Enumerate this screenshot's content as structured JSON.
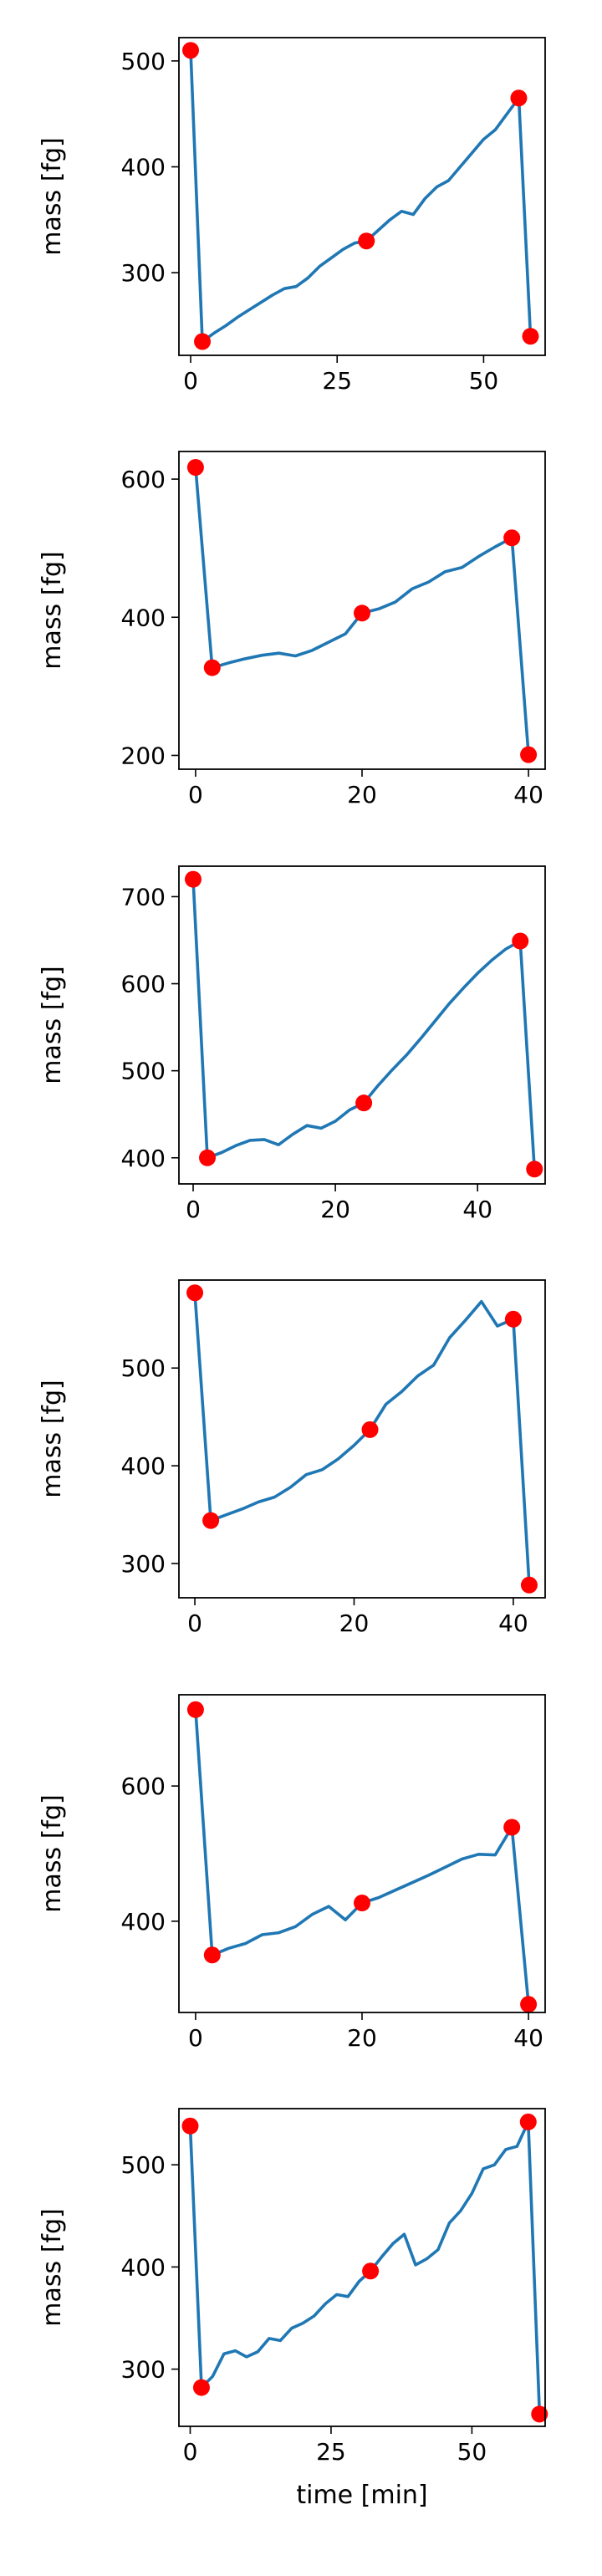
{
  "colors": {
    "line": "#1f77b4",
    "marker": "#ff0000",
    "axes": "#000000",
    "background": "#ffffff"
  },
  "chart_data": [
    {
      "type": "line",
      "xlim": [
        -2,
        60.5
      ],
      "ylim": [
        222,
        522
      ],
      "xticks": [
        0,
        25,
        50
      ],
      "yticks": [
        300,
        400,
        500
      ],
      "ylabel": "mass [fg]",
      "xlabel": "",
      "grid": false,
      "series": [
        {
          "x": [
            0,
            2,
            4,
            6,
            8,
            10,
            12,
            14,
            16,
            18,
            20,
            22,
            24,
            26,
            28,
            30,
            32,
            34,
            36,
            38,
            40,
            42,
            44,
            46,
            48,
            50,
            52,
            54,
            56,
            58
          ],
          "values": [
            510,
            235,
            243,
            250,
            258,
            265,
            272,
            279,
            285,
            287,
            295,
            306,
            314,
            322,
            328,
            330,
            340,
            350,
            358,
            355,
            370,
            381,
            387,
            400,
            413,
            426,
            435,
            450,
            465,
            240
          ]
        }
      ],
      "markers": {
        "x": [
          0,
          2,
          30,
          56,
          58
        ],
        "values": [
          510,
          235,
          330,
          465,
          240
        ]
      }
    },
    {
      "type": "line",
      "xlim": [
        -2,
        42
      ],
      "ylim": [
        180,
        640
      ],
      "xticks": [
        0,
        20,
        40
      ],
      "yticks": [
        200,
        400,
        600
      ],
      "ylabel": "mass [fg]",
      "xlabel": "",
      "grid": false,
      "series": [
        {
          "x": [
            0,
            2,
            4,
            6,
            8,
            10,
            12,
            14,
            16,
            18,
            20,
            22,
            24,
            26,
            28,
            30,
            32,
            34,
            36,
            38,
            40
          ],
          "values": [
            617,
            327,
            334,
            340,
            345,
            348,
            344,
            352,
            364,
            376,
            406,
            412,
            422,
            441,
            451,
            466,
            472,
            488,
            502,
            515,
            201
          ]
        }
      ],
      "markers": {
        "x": [
          0,
          2,
          20,
          38,
          40
        ],
        "values": [
          617,
          327,
          406,
          515,
          201
        ]
      }
    },
    {
      "type": "line",
      "xlim": [
        -2,
        49.5
      ],
      "ylim": [
        370,
        735
      ],
      "xticks": [
        0,
        20,
        40
      ],
      "yticks": [
        400,
        500,
        600,
        700
      ],
      "ylabel": "mass [fg]",
      "xlabel": "",
      "grid": false,
      "series": [
        {
          "x": [
            0,
            2,
            4,
            6,
            8,
            10,
            12,
            14,
            16,
            18,
            20,
            22,
            24,
            26,
            28,
            30,
            32,
            34,
            36,
            38,
            40,
            42,
            44,
            46,
            48
          ],
          "values": [
            720,
            400,
            406,
            414,
            420,
            421,
            415,
            427,
            437,
            434,
            442,
            455,
            463,
            483,
            501,
            518,
            537,
            557,
            577,
            595,
            612,
            627,
            640,
            649,
            387
          ]
        }
      ],
      "markers": {
        "x": [
          0,
          2,
          24,
          46,
          48
        ],
        "values": [
          720,
          400,
          463,
          649,
          387
        ]
      }
    },
    {
      "type": "line",
      "xlim": [
        -2,
        44
      ],
      "ylim": [
        265,
        590
      ],
      "xticks": [
        0,
        20,
        40
      ],
      "yticks": [
        300,
        400,
        500
      ],
      "ylabel": "mass [fg]",
      "xlabel": "",
      "grid": false,
      "series": [
        {
          "x": [
            0,
            2,
            4,
            6,
            8,
            10,
            12,
            14,
            16,
            18,
            20,
            22,
            24,
            26,
            28,
            30,
            32,
            34,
            36,
            38,
            40,
            42
          ],
          "values": [
            577,
            344,
            350,
            356,
            363,
            368,
            378,
            391,
            396,
            407,
            421,
            437,
            463,
            476,
            492,
            503,
            531,
            549,
            568,
            543,
            550,
            278
          ]
        }
      ],
      "markers": {
        "x": [
          0,
          2,
          22,
          40,
          42
        ],
        "values": [
          577,
          344,
          437,
          550,
          278
        ]
      }
    },
    {
      "type": "line",
      "xlim": [
        -2,
        42
      ],
      "ylim": [
        265,
        735
      ],
      "xticks": [
        0,
        20,
        40
      ],
      "yticks": [
        400,
        600
      ],
      "ylabel": "mass [fg]",
      "xlabel": "",
      "grid": false,
      "series": [
        {
          "x": [
            0,
            2,
            4,
            6,
            8,
            10,
            12,
            14,
            16,
            18,
            20,
            22,
            24,
            26,
            28,
            30,
            32,
            34,
            36,
            38,
            40
          ],
          "values": [
            713,
            350,
            360,
            367,
            380,
            383,
            392,
            410,
            422,
            402,
            427,
            435,
            446,
            457,
            468,
            480,
            492,
            499,
            498,
            539,
            277
          ]
        }
      ],
      "markers": {
        "x": [
          0,
          2,
          20,
          38,
          40
        ],
        "values": [
          713,
          350,
          427,
          539,
          277
        ]
      }
    },
    {
      "type": "line",
      "xlim": [
        -2,
        63
      ],
      "ylim": [
        244,
        555
      ],
      "xticks": [
        0,
        25,
        50
      ],
      "yticks": [
        300,
        400,
        500
      ],
      "ylabel": "mass [fg]",
      "xlabel": "time [min]",
      "grid": false,
      "series": [
        {
          "x": [
            0,
            2,
            4,
            6,
            8,
            10,
            12,
            14,
            16,
            18,
            20,
            22,
            24,
            26,
            28,
            30,
            32,
            34,
            36,
            38,
            40,
            42,
            44,
            46,
            48,
            50,
            52,
            54,
            56,
            58,
            60,
            62
          ],
          "values": [
            538,
            282,
            293,
            315,
            318,
            312,
            317,
            330,
            328,
            340,
            345,
            352,
            364,
            373,
            371,
            386,
            396,
            410,
            423,
            432,
            402,
            408,
            417,
            443,
            455,
            472,
            496,
            500,
            515,
            518,
            542,
            256
          ]
        }
      ],
      "markers": {
        "x": [
          0,
          2,
          32,
          60,
          62
        ],
        "values": [
          538,
          282,
          396,
          542,
          256
        ]
      }
    }
  ]
}
